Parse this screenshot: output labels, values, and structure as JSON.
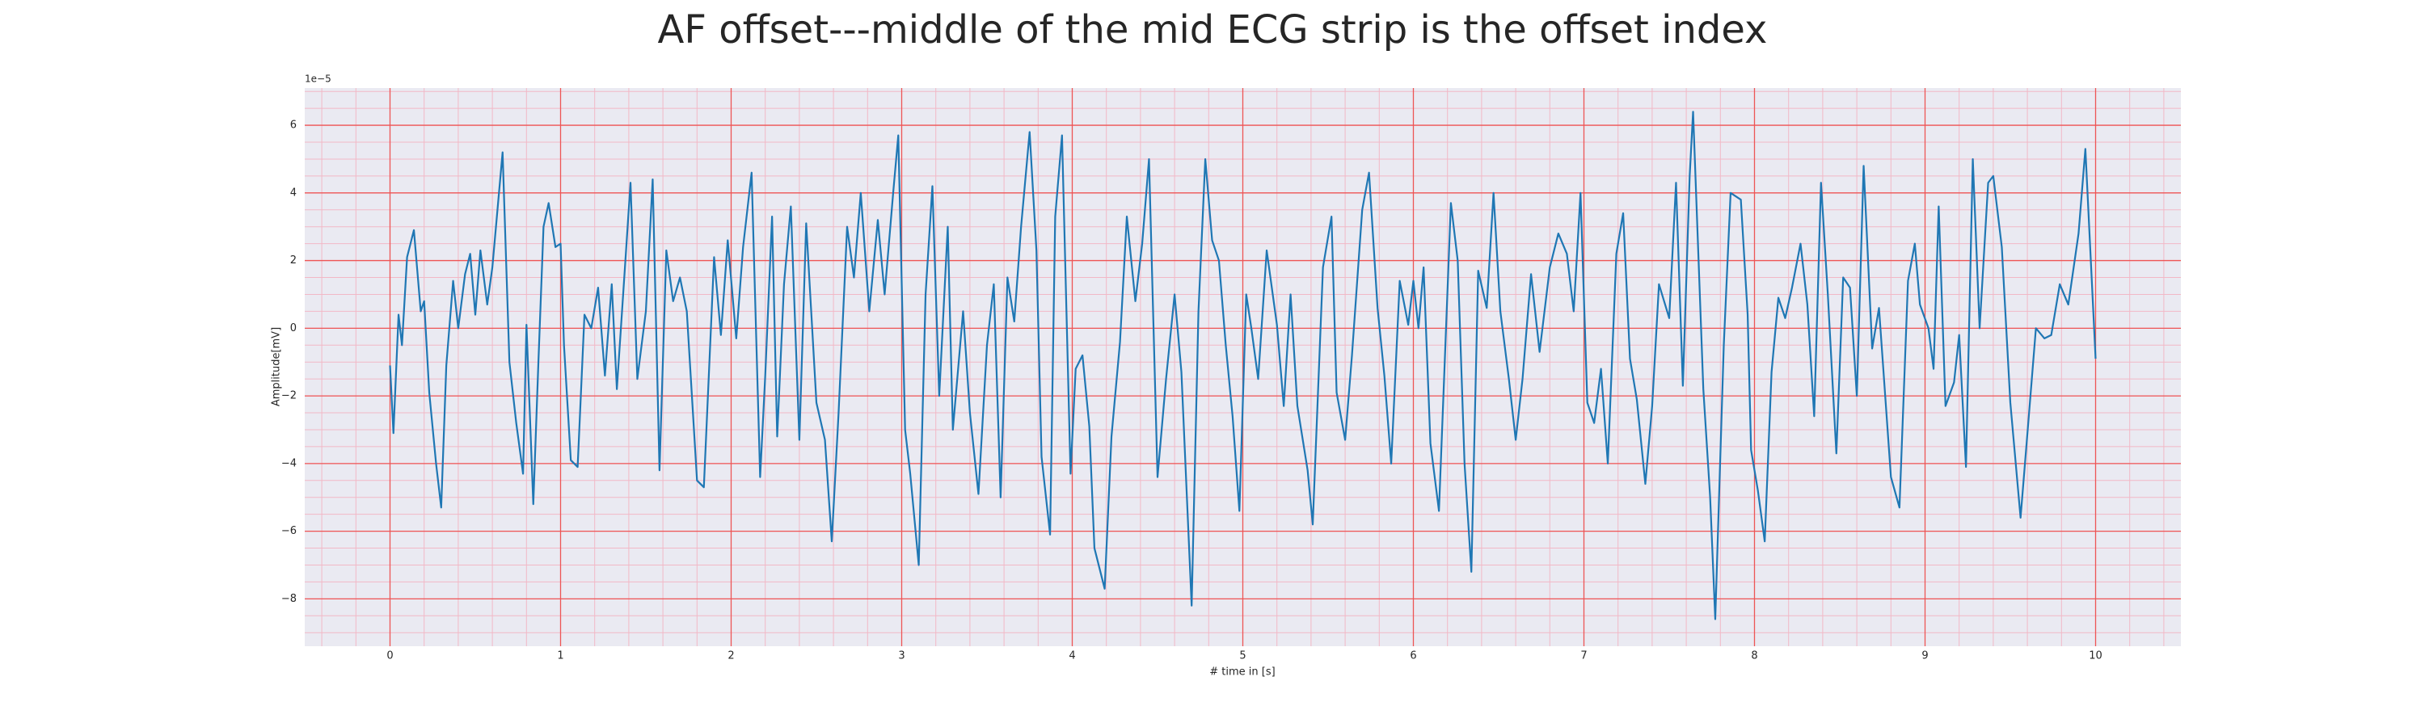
{
  "chart_data": {
    "type": "line",
    "title": "AF offset---middle of the mid ECG strip is the offset index",
    "xlabel": "# time in [s]",
    "ylabel": "Amplitude[mV]",
    "y_offset_label": "1e−5",
    "xlim": [
      -0.5,
      10.5
    ],
    "ylim": [
      -9.4,
      7.1
    ],
    "xticks": [
      0,
      1,
      2,
      3,
      4,
      5,
      6,
      7,
      8,
      9,
      10
    ],
    "yticks": [
      -8,
      -6,
      -4,
      -2,
      0,
      2,
      4,
      6
    ],
    "grid": true,
    "grid_color": "#ee5555",
    "minor_grid": {
      "x": 0.2,
      "y": 0.5,
      "color": "#f2b8c6"
    },
    "background": "#eaeaf2",
    "series": [
      {
        "color": "#1f77b4",
        "x": [
          0,
          0.02,
          0.05,
          0.07,
          0.1,
          0.14,
          0.18,
          0.2,
          0.23,
          0.27,
          0.3,
          0.33,
          0.37,
          0.4,
          0.44,
          0.47,
          0.5,
          0.53,
          0.57,
          0.6,
          0.66,
          0.7,
          0.74,
          0.78,
          0.8,
          0.84,
          0.87,
          0.9,
          0.93,
          0.97,
          1.0,
          1.02,
          1.06,
          1.1,
          1.14,
          1.18,
          1.22,
          1.26,
          1.3,
          1.33,
          1.38,
          1.41,
          1.45,
          1.5,
          1.54,
          1.58,
          1.62,
          1.66,
          1.7,
          1.74,
          1.8,
          1.84,
          1.9,
          1.94,
          1.98,
          2.03,
          2.07,
          2.12,
          2.17,
          2.2,
          2.24,
          2.27,
          2.31,
          2.35,
          2.4,
          2.44,
          2.5,
          2.55,
          2.59,
          2.63,
          2.68,
          2.72,
          2.76,
          2.81,
          2.86,
          2.9,
          2.95,
          2.98,
          3.02,
          3.05,
          3.1,
          3.14,
          3.18,
          3.22,
          3.27,
          3.3,
          3.36,
          3.4,
          3.45,
          3.5,
          3.54,
          3.58,
          3.62,
          3.66,
          3.7,
          3.75,
          3.79,
          3.82,
          3.87,
          3.9,
          3.94,
          3.99,
          4.02,
          4.06,
          4.1,
          4.13,
          4.19,
          4.23,
          4.28,
          4.32,
          4.37,
          4.41,
          4.45,
          4.5,
          4.55,
          4.6,
          4.64,
          4.7,
          4.74,
          4.78,
          4.82,
          4.86,
          4.9,
          4.94,
          4.98,
          5.02,
          5.05,
          5.09,
          5.14,
          5.2,
          5.24,
          5.28,
          5.32,
          5.38,
          5.41,
          5.47,
          5.52,
          5.55,
          5.6,
          5.64,
          5.7,
          5.74,
          5.79,
          5.83,
          5.87,
          5.92,
          5.97,
          6.0,
          6.03,
          6.06,
          6.1,
          6.15,
          6.22,
          6.26,
          6.3,
          6.34,
          6.38,
          6.43,
          6.47,
          6.51,
          6.56,
          6.6,
          6.64,
          6.69,
          6.74,
          6.8,
          6.85,
          6.9,
          6.94,
          6.98,
          7.02,
          7.06,
          7.1,
          7.14,
          7.19,
          7.23,
          7.27,
          7.31,
          7.36,
          7.4,
          7.44,
          7.5,
          7.54,
          7.58,
          7.62,
          7.64,
          7.7,
          7.74,
          7.77,
          7.82,
          7.86,
          7.92,
          7.96,
          7.98,
          8.02,
          8.06,
          8.1,
          8.14,
          8.18,
          8.22,
          8.27,
          8.31,
          8.35,
          8.39,
          8.43,
          8.48,
          8.52,
          8.56,
          8.6,
          8.64,
          8.69,
          8.73,
          8.8,
          8.85,
          8.9,
          8.94,
          8.97,
          9.02,
          9.05,
          9.08,
          9.12,
          9.17,
          9.2,
          9.24,
          9.28,
          9.32,
          9.37,
          9.4,
          9.45,
          9.5,
          9.56,
          9.61,
          9.65,
          9.7,
          9.74,
          9.79,
          9.84,
          9.9,
          9.94,
          10.0
        ],
        "values": [
          -1.1,
          -3.1,
          0.4,
          -0.5,
          2.1,
          2.9,
          0.5,
          0.8,
          -1.9,
          -4,
          -5.3,
          -1.1,
          1.4,
          0,
          1.6,
          2.2,
          0.4,
          2.3,
          0.7,
          1.8,
          5.2,
          -1,
          -2.8,
          -4.3,
          0.1,
          -5.2,
          -1,
          3,
          3.7,
          2.4,
          2.5,
          -0.5,
          -3.9,
          -4.1,
          0.4,
          0,
          1.2,
          -1.4,
          1.3,
          -1.8,
          2,
          4.3,
          -1.5,
          0.5,
          4.4,
          -4.2,
          2.3,
          0.8,
          1.5,
          0.5,
          -4.5,
          -4.7,
          2.1,
          -0.2,
          2.6,
          -0.3,
          2.4,
          4.6,
          -4.4,
          -1.4,
          3.3,
          -3.2,
          1.3,
          3.6,
          -3.3,
          3.1,
          -2.2,
          -3.3,
          -6.3,
          -2.5,
          3,
          1.5,
          4,
          0.5,
          3.2,
          1,
          4,
          5.7,
          -3,
          -4.3,
          -7,
          1,
          4.2,
          -2,
          3,
          -3,
          0.5,
          -2.5,
          -4.9,
          -0.5,
          1.3,
          -5,
          1.5,
          0.2,
          3,
          5.8,
          2.3,
          -3.8,
          -6.1,
          3.3,
          5.7,
          -4.3,
          -1.2,
          -0.8,
          -2.9,
          -6.5,
          -7.7,
          -3.2,
          -0.4,
          3.3,
          0.8,
          2.5,
          5,
          -4.4,
          -1.5,
          1,
          -1.3,
          -8.2,
          0.5,
          5,
          2.6,
          2,
          -0.5,
          -2.6,
          -5.4,
          1,
          0,
          -1.5,
          2.3,
          0.1,
          -2.3,
          1,
          -2.3,
          -4.2,
          -5.8,
          1.8,
          3.3,
          -1.9,
          -3.3,
          -0.8,
          3.5,
          4.6,
          0.6,
          -1.4,
          -4,
          1.4,
          0.1,
          1.4,
          0,
          1.8,
          -3.4,
          -5.4,
          3.7,
          2,
          -4,
          -7.2,
          1.7,
          0.6,
          4,
          0.5,
          -1.5,
          -3.3,
          -1.5,
          1.6,
          -0.7,
          1.8,
          2.8,
          2.2,
          0.5,
          4,
          -2.2,
          -2.8,
          -1.2,
          -4,
          2.2,
          3.4,
          -0.9,
          -2.1,
          -4.6,
          -2.3,
          1.3,
          0.3,
          4.3,
          -1.7,
          4.5,
          6.4,
          -1.8,
          -5,
          -8.6,
          -0.5,
          4,
          3.8,
          0.4,
          -3.6,
          -4.8,
          -6.3,
          -1.3,
          0.9,
          0.3,
          1.2,
          2.5,
          0.7,
          -2.6,
          4.3,
          1,
          -3.7,
          1.5,
          1.2,
          -2,
          4.8,
          -0.6,
          0.6,
          -4.4,
          -5.3,
          1.4,
          2.5,
          0.7,
          0,
          -1.2,
          3.6,
          -2.3,
          -1.6,
          -0.2,
          -4.1,
          5,
          0,
          4.3,
          4.5,
          2.4,
          -2.2,
          -5.6,
          -2.5,
          0,
          -0.3,
          -0.2,
          1.3,
          0.7,
          2.8,
          5.3,
          -0.9
        ]
      }
    ]
  }
}
